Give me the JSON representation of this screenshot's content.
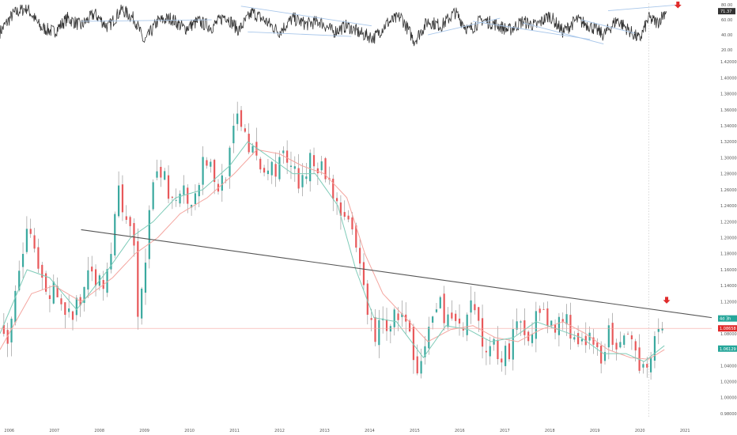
{
  "chart_data": [
    {
      "type": "line",
      "panel": "oscillator",
      "ylim": [
        15,
        82
      ],
      "y_ticks": [
        "80.00",
        "60.00",
        "40.00",
        "20.00"
      ],
      "y_tick_values": [
        80,
        60,
        40,
        20
      ],
      "current_value": 71.37,
      "current_label": "71.37",
      "series": [
        {
          "x": [
            2005.8,
            2006.1,
            2006.4,
            2006.7,
            2007.0,
            2007.3,
            2007.6,
            2007.9,
            2008.2,
            2008.5,
            2008.8,
            2009.0,
            2009.3,
            2009.6,
            2009.9,
            2010.2,
            2010.5,
            2010.8,
            2011.1,
            2011.4,
            2011.7,
            2012.0,
            2012.3,
            2012.6,
            2012.9,
            2013.2,
            2013.5,
            2013.8,
            2014.1,
            2014.4,
            2014.7,
            2015.0,
            2015.3,
            2015.6,
            2015.9,
            2016.2,
            2016.5,
            2016.8,
            2017.1,
            2017.4,
            2017.7,
            2018.0,
            2018.3,
            2018.6,
            2018.9,
            2019.2,
            2019.5,
            2019.8,
            2020.0,
            2020.2,
            2020.4,
            2020.6
          ],
          "y": [
            44,
            68,
            76,
            50,
            44,
            62,
            52,
            68,
            50,
            74,
            60,
            30,
            58,
            62,
            48,
            58,
            50,
            66,
            46,
            70,
            58,
            44,
            62,
            54,
            58,
            44,
            52,
            42,
            36,
            56,
            64,
            32,
            58,
            52,
            70,
            46,
            60,
            54,
            46,
            58,
            52,
            66,
            44,
            60,
            52,
            40,
            60,
            44,
            34,
            62,
            56,
            74
          ]
        }
      ]
    },
    {
      "type": "candlestick",
      "panel": "price",
      "ylim": [
        0.975,
        1.43
      ],
      "y_ticks": [
        "1.42000",
        "1.40000",
        "1.38000",
        "1.36000",
        "1.34000",
        "1.32000",
        "1.30000",
        "1.28000",
        "1.26000",
        "1.24000",
        "1.22000",
        "1.20000",
        "1.18000",
        "1.16000",
        "1.14000",
        "1.12000",
        "1.10000",
        "1.08000",
        "1.06000",
        "1.04000",
        "1.02000",
        "1.00000",
        "0.98000"
      ],
      "y_tick_values": [
        1.42,
        1.4,
        1.38,
        1.36,
        1.34,
        1.32,
        1.3,
        1.28,
        1.26,
        1.24,
        1.22,
        1.2,
        1.18,
        1.16,
        1.14,
        1.12,
        1.1,
        1.08,
        1.06,
        1.04,
        1.02,
        1.0,
        0.98
      ],
      "x_ticks": [
        "2006",
        "2007",
        "2008",
        "2009",
        "2010",
        "2011",
        "2012",
        "2013",
        "2014",
        "2015",
        "2016",
        "2017",
        "2018",
        "2019",
        "2020",
        "2021"
      ],
      "x_tick_values": [
        2006,
        2007,
        2008,
        2009,
        2010,
        2011,
        2012,
        2013,
        2014,
        2015,
        2016,
        2017,
        2018,
        2019,
        2020,
        2021
      ],
      "xlim": [
        2005.8,
        2021.6
      ],
      "price_path": {
        "x": [
          2005.8,
          2006.0,
          2006.2,
          2006.4,
          2006.6,
          2006.8,
          2007.0,
          2007.2,
          2007.4,
          2007.6,
          2007.8,
          2008.0,
          2008.2,
          2008.4,
          2008.6,
          2008.8,
          2008.85,
          2009.0,
          2009.2,
          2009.4,
          2009.6,
          2009.8,
          2010.0,
          2010.2,
          2010.4,
          2010.6,
          2010.8,
          2011.0,
          2011.1,
          2011.3,
          2011.5,
          2011.7,
          2011.9,
          2012.1,
          2012.3,
          2012.5,
          2012.7,
          2012.9,
          2013.1,
          2013.3,
          2013.5,
          2013.7,
          2013.9,
          2014.1,
          2014.3,
          2014.5,
          2014.7,
          2014.9,
          2015.05,
          2015.3,
          2015.5,
          2015.7,
          2015.9,
          2016.1,
          2016.3,
          2016.5,
          2016.7,
          2016.9,
          2017.1,
          2017.3,
          2017.5,
          2017.7,
          2017.9,
          2018.1,
          2018.3,
          2018.5,
          2018.7,
          2018.9,
          2019.1,
          2019.3,
          2019.5,
          2019.7,
          2019.9,
          2020.1,
          2020.25,
          2020.4,
          2020.55
        ],
        "y": [
          1.09,
          1.065,
          1.15,
          1.21,
          1.17,
          1.12,
          1.135,
          1.115,
          1.1,
          1.12,
          1.18,
          1.14,
          1.15,
          1.26,
          1.21,
          1.19,
          1.085,
          1.17,
          1.26,
          1.28,
          1.24,
          1.27,
          1.245,
          1.275,
          1.3,
          1.26,
          1.28,
          1.33,
          1.36,
          1.32,
          1.29,
          1.28,
          1.29,
          1.3,
          1.28,
          1.26,
          1.31,
          1.29,
          1.27,
          1.245,
          1.22,
          1.18,
          1.13,
          1.075,
          1.095,
          1.095,
          1.11,
          1.07,
          1.015,
          1.08,
          1.12,
          1.105,
          1.09,
          1.08,
          1.115,
          1.065,
          1.07,
          1.055,
          1.06,
          1.09,
          1.08,
          1.105,
          1.095,
          1.085,
          1.1,
          1.085,
          1.06,
          1.07,
          1.05,
          1.08,
          1.05,
          1.07,
          1.055,
          1.04,
          1.06,
          1.07,
          1.1
        ]
      },
      "moving_averages": [
        {
          "color": "#f4a6a0",
          "x": [
            2005.8,
            2006.5,
            2007.0,
            2007.6,
            2008.3,
            2008.8,
            2009.3,
            2009.8,
            2010.4,
            2011.0,
            2011.5,
            2012.0,
            2012.5,
            2013.0,
            2013.5,
            2013.9,
            2014.3,
            2014.8,
            2015.3,
            2015.8,
            2016.3,
            2016.8,
            2017.3,
            2017.8,
            2018.3,
            2018.8,
            2019.3,
            2019.8,
            2020.2,
            2020.55
          ],
          "y": [
            1.06,
            1.13,
            1.14,
            1.12,
            1.15,
            1.18,
            1.2,
            1.23,
            1.25,
            1.28,
            1.31,
            1.305,
            1.29,
            1.28,
            1.25,
            1.18,
            1.13,
            1.1,
            1.07,
            1.085,
            1.09,
            1.075,
            1.07,
            1.085,
            1.095,
            1.08,
            1.06,
            1.05,
            1.048,
            1.06
          ]
        },
        {
          "color": "#7ecbb8",
          "x": [
            2005.8,
            2006.4,
            2006.9,
            2007.5,
            2008.2,
            2008.7,
            2009.2,
            2009.7,
            2010.3,
            2010.9,
            2011.3,
            2011.8,
            2012.3,
            2012.8,
            2013.3,
            2013.7,
            2014.1,
            2014.6,
            2015.2,
            2015.7,
            2016.2,
            2016.7,
            2017.2,
            2017.7,
            2018.2,
            2018.7,
            2019.2,
            2019.7,
            2020.1,
            2020.55
          ],
          "y": [
            1.08,
            1.16,
            1.15,
            1.11,
            1.16,
            1.2,
            1.22,
            1.25,
            1.26,
            1.29,
            1.32,
            1.3,
            1.28,
            1.28,
            1.24,
            1.16,
            1.1,
            1.095,
            1.05,
            1.09,
            1.085,
            1.07,
            1.075,
            1.095,
            1.085,
            1.075,
            1.055,
            1.055,
            1.045,
            1.065
          ]
        }
      ],
      "price_label": "1.08658",
      "price_label_value": 1.08658,
      "ma_label": "1.06129",
      "ma_label_value": 1.06129,
      "countdown_label": "4d 3h",
      "countdown_value": 1.099,
      "horizontal_line": {
        "value": 1.08658,
        "color": "#f4a6a0"
      },
      "trendline": {
        "x1": 2007.6,
        "y1": 1.21,
        "x2": 2021.6,
        "y2": 1.1,
        "color": "#555555"
      },
      "vertical_marker": {
        "x": 2020.2
      },
      "down_arrow": {
        "x": 2020.6,
        "y": 1.12,
        "color": "#e02b2b"
      }
    }
  ],
  "oscillator_trendlines": [
    {
      "x1": 2007.6,
      "y1": 58,
      "x2": 2010.5,
      "y2": 60
    },
    {
      "x1": 2011.15,
      "y1": 78,
      "x2": 2014.05,
      "y2": 52
    },
    {
      "x1": 2011.3,
      "y1": 44,
      "x2": 2013.6,
      "y2": 38
    },
    {
      "x1": 2015.3,
      "y1": 40,
      "x2": 2016.9,
      "y2": 62
    },
    {
      "x1": 2016.3,
      "y1": 58,
      "x2": 2018.9,
      "y2": 34
    },
    {
      "x1": 2017.4,
      "y1": 56,
      "x2": 2019.2,
      "y2": 28
    },
    {
      "x1": 2018.7,
      "y1": 60,
      "x2": 2019.9,
      "y2": 42
    },
    {
      "x1": 2019.3,
      "y1": 72,
      "x2": 2020.9,
      "y2": 80
    }
  ],
  "oscillator_arrow": {
    "x": 2020.85,
    "y": 84,
    "color": "#e02b2b"
  },
  "colors": {
    "up_candle": "#3aa99f",
    "down_candle": "#e8585a",
    "wick": "#8a8a8a",
    "oscillator_line": "#333333",
    "channel": "#a9c7ea",
    "badge_dark": "#333333",
    "badge_green": "#26a69a",
    "badge_red": "#e02b2b"
  }
}
